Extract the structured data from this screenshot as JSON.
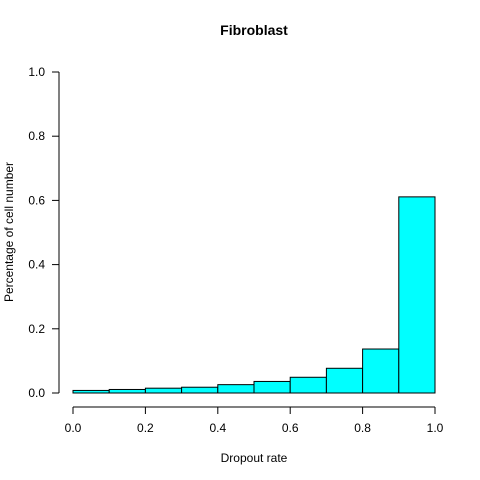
{
  "chart_data": {
    "type": "bar",
    "title": "Fibroblast",
    "xlabel": "Dropout rate",
    "ylabel": "Percentage of cell number",
    "bins": [
      {
        "x0": 0.0,
        "x1": 0.1,
        "value": 0.008
      },
      {
        "x0": 0.1,
        "x1": 0.2,
        "value": 0.011
      },
      {
        "x0": 0.2,
        "x1": 0.3,
        "value": 0.015
      },
      {
        "x0": 0.3,
        "x1": 0.4,
        "value": 0.018
      },
      {
        "x0": 0.4,
        "x1": 0.5,
        "value": 0.026
      },
      {
        "x0": 0.5,
        "x1": 0.6,
        "value": 0.036
      },
      {
        "x0": 0.6,
        "x1": 0.7,
        "value": 0.049
      },
      {
        "x0": 0.7,
        "x1": 0.8,
        "value": 0.077
      },
      {
        "x0": 0.8,
        "x1": 0.9,
        "value": 0.137
      },
      {
        "x0": 0.9,
        "x1": 1.0,
        "value": 0.611
      }
    ],
    "xlim": [
      0.0,
      1.0
    ],
    "ylim": [
      0.0,
      1.0
    ],
    "xticks": [
      0.0,
      0.2,
      0.4,
      0.6,
      0.8,
      1.0
    ],
    "xtick_labels": [
      "0.0",
      "0.2",
      "0.4",
      "0.6",
      "0.8",
      "1.0"
    ],
    "yticks": [
      0.0,
      0.2,
      0.4,
      0.6,
      0.8,
      1.0
    ],
    "ytick_labels": [
      "0.0",
      "0.2",
      "0.4",
      "0.6",
      "0.8",
      "1.0"
    ],
    "grid": false,
    "legend": "none",
    "bar_color": "#00FFFF",
    "bar_border_color": "#000000"
  }
}
